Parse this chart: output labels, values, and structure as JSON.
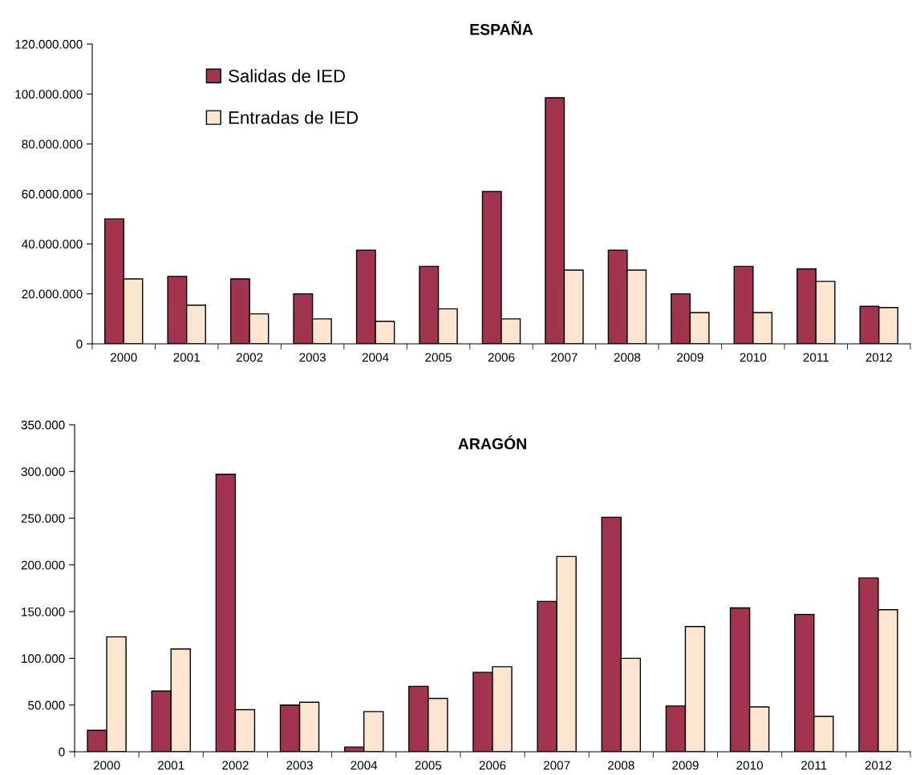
{
  "chart_data": [
    {
      "type": "bar",
      "title": "ESPAÑA",
      "categories": [
        "2000",
        "2001",
        "2002",
        "2003",
        "2004",
        "2005",
        "2006",
        "2007",
        "2008",
        "2009",
        "2010",
        "2011",
        "2012"
      ],
      "series": [
        {
          "name": "Salidas de IED",
          "color": "#a3344e",
          "values": [
            50000000,
            27000000,
            26000000,
            20000000,
            37500000,
            31000000,
            61000000,
            98500000,
            37500000,
            20000000,
            31000000,
            30000000,
            15000000
          ]
        },
        {
          "name": "Entradas de IED",
          "color": "#fce5cf",
          "values": [
            26000000,
            15500000,
            12000000,
            10000000,
            9000000,
            14000000,
            10000000,
            29500000,
            29500000,
            12500000,
            12500000,
            25000000,
            14500000
          ]
        }
      ],
      "ylim": [
        0,
        120000000
      ],
      "yticks": [
        0,
        {
          "value": 20000000,
          "label": "20.000.000"
        },
        {
          "value": 40000000,
          "label": "40.000.000"
        },
        {
          "value": 60000000,
          "label": "60.000.000"
        },
        {
          "value": 80000000,
          "label": "80.000.000"
        },
        {
          "value": 100000000,
          "label": "100.000.000"
        },
        {
          "value": 120000000,
          "label": "120.000.000"
        }
      ],
      "grid": false,
      "legend": "top left"
    },
    {
      "type": "bar",
      "title": "ARAGÓN",
      "categories": [
        "2000",
        "2001",
        "2002",
        "2003",
        "2004",
        "2005",
        "2006",
        "2007",
        "2008",
        "2009",
        "2010",
        "2011",
        "2012"
      ],
      "series": [
        {
          "color": "#a3344e",
          "values": [
            23000,
            65000,
            297000,
            50000,
            5000,
            70000,
            85000,
            161000,
            251000,
            49000,
            154000,
            147000,
            186000
          ]
        },
        {
          "color": "#fce5cf",
          "values": [
            123000,
            110000,
            45000,
            53000,
            43000,
            57000,
            91000,
            209000,
            100000,
            134000,
            48000,
            38000,
            152000
          ]
        }
      ],
      "ylim": [
        0,
        350000
      ],
      "yticks": [
        0,
        {
          "value": 50000,
          "label": "50.000"
        },
        {
          "value": 100000,
          "label": "100.000"
        },
        {
          "value": 150000,
          "label": "150.000"
        },
        {
          "value": 200000,
          "label": "200.000"
        },
        {
          "value": 250000,
          "label": "250.000"
        },
        {
          "value": 300000,
          "label": "300.000"
        },
        {
          "value": 350000,
          "label": "350.000"
        }
      ],
      "grid": false,
      "legend": false
    }
  ]
}
